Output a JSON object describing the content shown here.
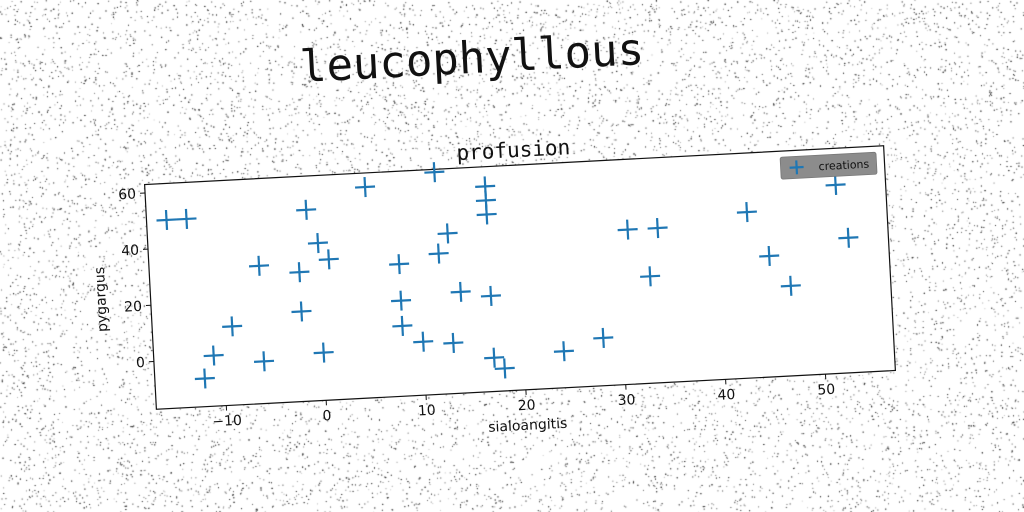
{
  "page": {
    "title": "leucophyllous"
  },
  "chart_data": {
    "type": "scatter",
    "title": "profusion",
    "xlabel": "sialoangitis",
    "ylabel": "pygargus",
    "xlim": [
      -17,
      57
    ],
    "ylim": [
      -17,
      63
    ],
    "xticks": [
      -10,
      0,
      10,
      20,
      30,
      40,
      50
    ],
    "yticks": [
      0,
      20,
      40,
      60
    ],
    "grid": false,
    "legend_position": "top-right",
    "marker_color": "#1f77b4",
    "series": [
      {
        "name": "creations",
        "points": [
          [
            -15,
            50
          ],
          [
            -13,
            50
          ],
          [
            -1,
            51
          ],
          [
            5,
            58
          ],
          [
            12,
            62
          ],
          [
            17,
            56
          ],
          [
            17,
            51
          ],
          [
            17,
            46
          ],
          [
            0,
            39
          ],
          [
            1,
            33
          ],
          [
            -2,
            29
          ],
          [
            -6,
            32
          ],
          [
            8,
            30
          ],
          [
            12,
            33
          ],
          [
            13,
            40
          ],
          [
            31,
            38
          ],
          [
            34,
            38
          ],
          [
            43,
            42
          ],
          [
            52,
            50
          ],
          [
            53,
            31
          ],
          [
            45,
            26
          ],
          [
            47,
            15
          ],
          [
            33,
            21
          ],
          [
            -9,
            11
          ],
          [
            -2,
            15
          ],
          [
            8,
            17
          ],
          [
            14,
            19
          ],
          [
            17,
            17
          ],
          [
            8,
            8
          ],
          [
            10,
            2
          ],
          [
            13,
            1
          ],
          [
            -11,
            1
          ],
          [
            -6,
            -2
          ],
          [
            0,
            0
          ],
          [
            -12,
            -7
          ],
          [
            17,
            -5
          ],
          [
            18,
            -9
          ],
          [
            24,
            -4
          ],
          [
            28,
            0
          ]
        ]
      }
    ]
  }
}
